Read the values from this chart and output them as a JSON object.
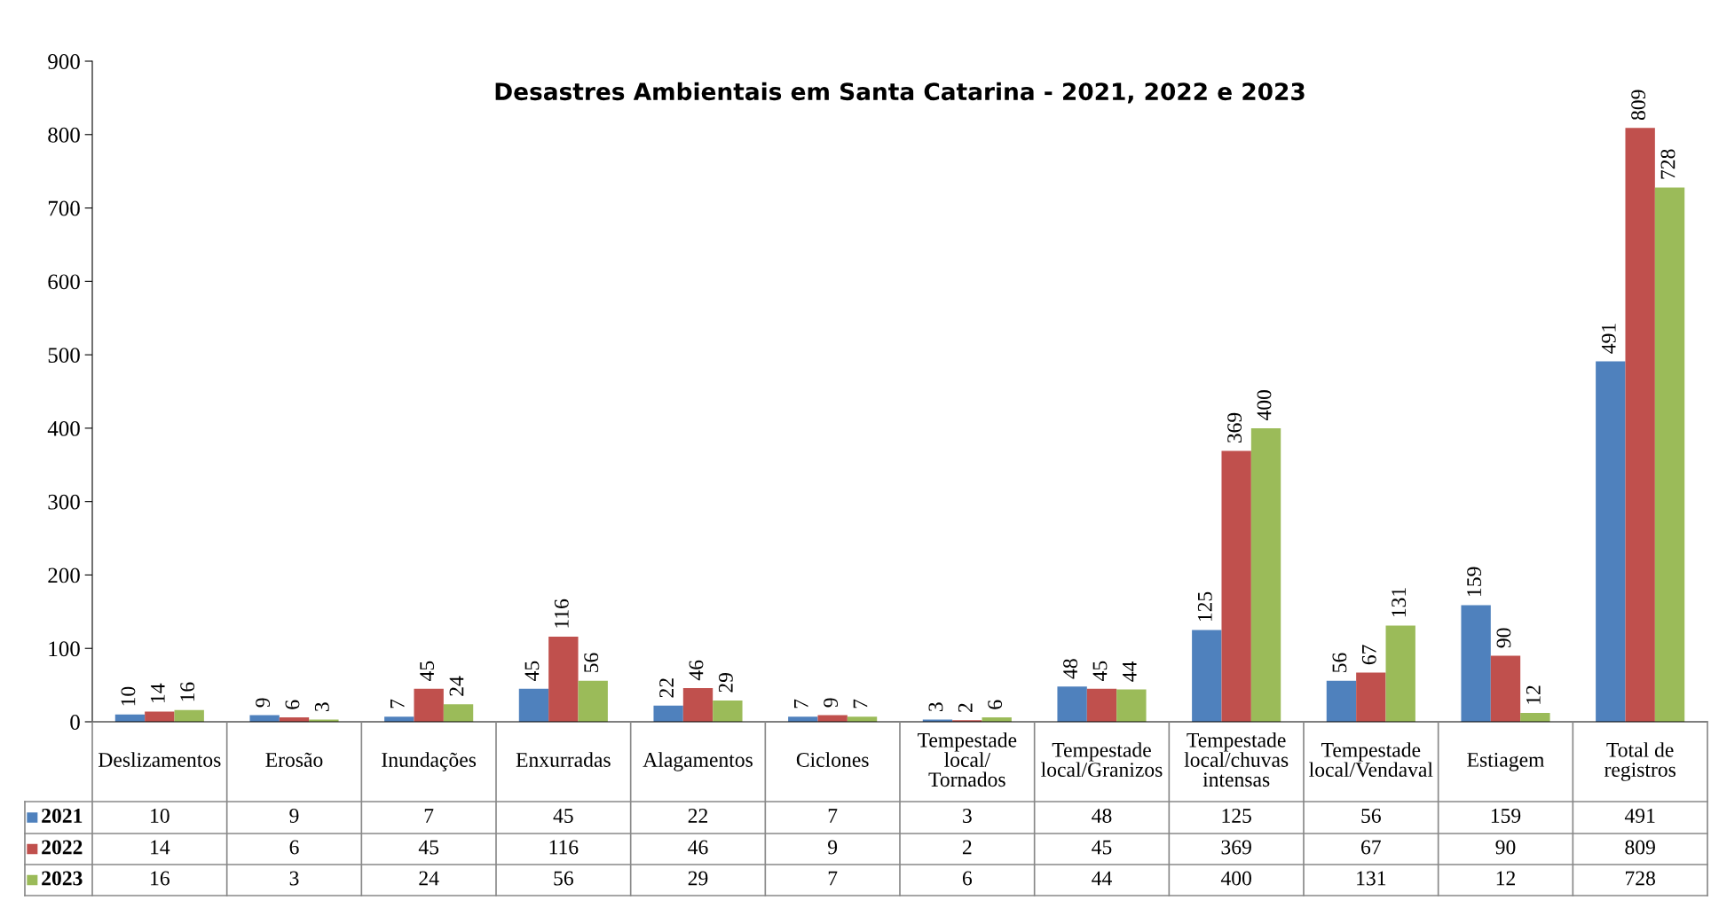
{
  "chart_data": {
    "type": "bar",
    "title": "Desastres Ambientais em Santa Catarina - 2021, 2022 e 2023",
    "categories": [
      "Deslizamentos",
      "Erosão",
      "Inundações",
      "Enxurradas",
      "Alagamentos",
      "Ciclones",
      "Tempestade\nlocal/\nTornados",
      "Tempestade\nlocal/Granizos",
      "Tempestade\nlocal/chuvas\nintensas",
      "Tempestade\nlocal/Vendaval",
      "Estiagem",
      "Total de\nregistros"
    ],
    "series": [
      {
        "name": "2021",
        "color": "#4f81bd",
        "values": [
          10,
          9,
          7,
          45,
          22,
          7,
          3,
          48,
          125,
          56,
          159,
          491
        ],
        "value_labels": [
          "10",
          "9",
          "7",
          "45",
          "22",
          "7",
          "3",
          "48",
          "125",
          "56",
          "159",
          "491"
        ]
      },
      {
        "name": "2022",
        "color": "#c0504d",
        "values": [
          14,
          6,
          45,
          116,
          46,
          9,
          2,
          45,
          369,
          67,
          90,
          809
        ],
        "value_labels": [
          "14",
          "6",
          "45",
          "116",
          "46",
          "9",
          "2",
          "45",
          "369",
          "67",
          "90",
          "809"
        ]
      },
      {
        "name": "2023",
        "color": "#9bbb59",
        "values": [
          16,
          3,
          24,
          56,
          29,
          7,
          6,
          44,
          400,
          131,
          12,
          728
        ],
        "value_labels": [
          "16",
          "3",
          "24",
          "56",
          "29",
          "7",
          "6",
          "44",
          "400",
          "131",
          "12",
          "728"
        ]
      }
    ],
    "ylim": [
      0,
      900
    ],
    "yticks": [
      0,
      100,
      200,
      300,
      400,
      500,
      600,
      700,
      800,
      900
    ],
    "annotations": [
      "10",
      "9",
      "7",
      "45",
      "22",
      "7",
      "3",
      "48",
      "125",
      "56",
      "159",
      "491",
      "14",
      "6",
      "45",
      "116",
      "46",
      "9",
      "2",
      "45",
      "369",
      "67",
      "90",
      "809",
      "16",
      "3",
      "24",
      "56",
      "29",
      "7",
      "6",
      "44",
      "400",
      "131",
      "12",
      "728"
    ],
    "legend": "bottom left",
    "grid": false
  }
}
